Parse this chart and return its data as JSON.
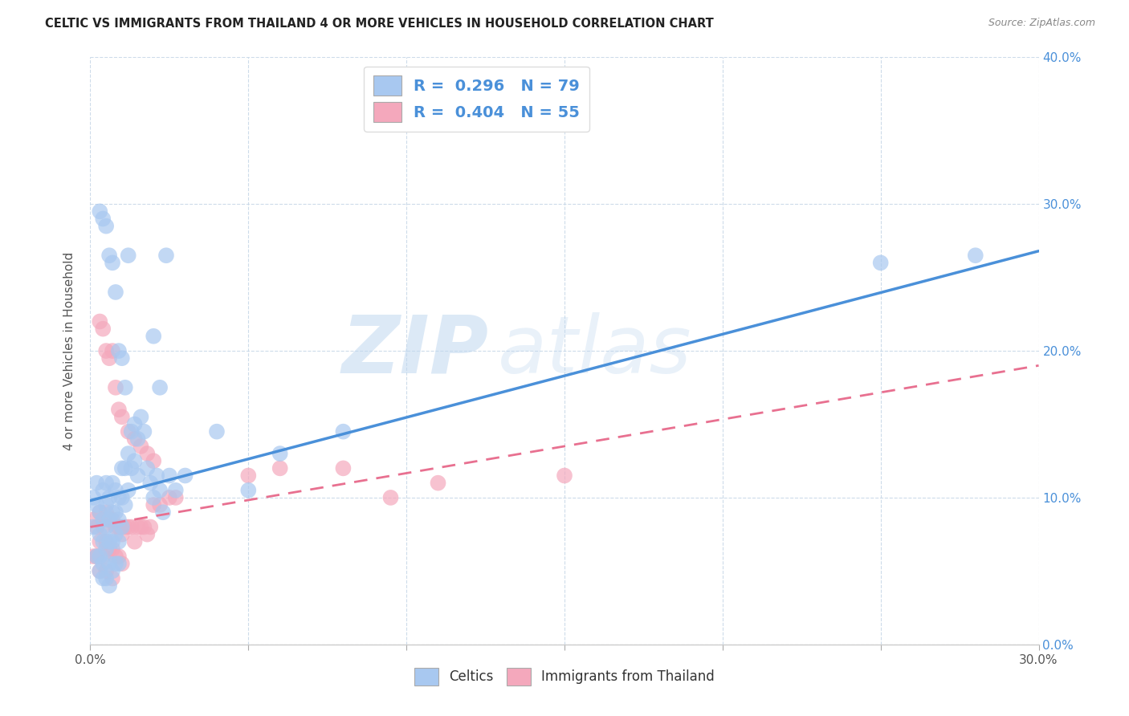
{
  "title": "CELTIC VS IMMIGRANTS FROM THAILAND 4 OR MORE VEHICLES IN HOUSEHOLD CORRELATION CHART",
  "source": "Source: ZipAtlas.com",
  "xmin": 0.0,
  "xmax": 0.3,
  "ymin": 0.0,
  "ymax": 0.4,
  "celtics_R": 0.296,
  "celtics_N": 79,
  "thailand_R": 0.404,
  "thailand_N": 55,
  "celtics_color": "#A8C8F0",
  "thailand_color": "#F4A8BC",
  "celtics_line_color": "#4A90D9",
  "thailand_line_color": "#E87090",
  "legend_label_celtics": "Celtics",
  "legend_label_thailand": "Immigrants from Thailand",
  "ylabel": "4 or more Vehicles in Household",
  "watermark_zip": "ZIP",
  "watermark_atlas": "atlas",
  "celtics_x": [
    0.001,
    0.001,
    0.002,
    0.002,
    0.002,
    0.003,
    0.003,
    0.003,
    0.003,
    0.004,
    0.004,
    0.004,
    0.004,
    0.004,
    0.005,
    0.005,
    0.005,
    0.005,
    0.005,
    0.006,
    0.006,
    0.006,
    0.006,
    0.006,
    0.007,
    0.007,
    0.007,
    0.007,
    0.008,
    0.008,
    0.008,
    0.008,
    0.009,
    0.009,
    0.009,
    0.009,
    0.01,
    0.01,
    0.01,
    0.011,
    0.011,
    0.012,
    0.012,
    0.013,
    0.013,
    0.014,
    0.014,
    0.015,
    0.015,
    0.016,
    0.017,
    0.018,
    0.019,
    0.02,
    0.021,
    0.022,
    0.023,
    0.025,
    0.027,
    0.03,
    0.003,
    0.004,
    0.005,
    0.006,
    0.007,
    0.008,
    0.009,
    0.01,
    0.011,
    0.012,
    0.02,
    0.022,
    0.024,
    0.04,
    0.05,
    0.06,
    0.08,
    0.25,
    0.28
  ],
  "celtics_y": [
    0.1,
    0.08,
    0.095,
    0.11,
    0.06,
    0.09,
    0.075,
    0.06,
    0.05,
    0.105,
    0.085,
    0.07,
    0.055,
    0.045,
    0.11,
    0.095,
    0.08,
    0.065,
    0.045,
    0.1,
    0.085,
    0.07,
    0.055,
    0.04,
    0.11,
    0.09,
    0.07,
    0.05,
    0.105,
    0.09,
    0.075,
    0.055,
    0.1,
    0.085,
    0.07,
    0.055,
    0.12,
    0.1,
    0.08,
    0.12,
    0.095,
    0.13,
    0.105,
    0.145,
    0.12,
    0.15,
    0.125,
    0.14,
    0.115,
    0.155,
    0.145,
    0.12,
    0.11,
    0.1,
    0.115,
    0.105,
    0.09,
    0.115,
    0.105,
    0.115,
    0.295,
    0.29,
    0.285,
    0.265,
    0.26,
    0.24,
    0.2,
    0.195,
    0.175,
    0.265,
    0.21,
    0.175,
    0.265,
    0.145,
    0.105,
    0.13,
    0.145,
    0.26,
    0.265
  ],
  "thailand_x": [
    0.001,
    0.001,
    0.002,
    0.002,
    0.003,
    0.003,
    0.003,
    0.004,
    0.004,
    0.005,
    0.005,
    0.005,
    0.006,
    0.006,
    0.007,
    0.007,
    0.007,
    0.008,
    0.008,
    0.009,
    0.009,
    0.01,
    0.01,
    0.011,
    0.012,
    0.013,
    0.014,
    0.015,
    0.016,
    0.017,
    0.018,
    0.019,
    0.02,
    0.022,
    0.025,
    0.027,
    0.003,
    0.004,
    0.005,
    0.006,
    0.007,
    0.008,
    0.009,
    0.01,
    0.012,
    0.014,
    0.016,
    0.018,
    0.02,
    0.05,
    0.06,
    0.08,
    0.095,
    0.11,
    0.15
  ],
  "thailand_y": [
    0.085,
    0.06,
    0.08,
    0.06,
    0.09,
    0.07,
    0.05,
    0.08,
    0.06,
    0.09,
    0.07,
    0.05,
    0.085,
    0.065,
    0.085,
    0.065,
    0.045,
    0.08,
    0.06,
    0.08,
    0.06,
    0.075,
    0.055,
    0.08,
    0.08,
    0.08,
    0.07,
    0.08,
    0.08,
    0.08,
    0.075,
    0.08,
    0.095,
    0.095,
    0.1,
    0.1,
    0.22,
    0.215,
    0.2,
    0.195,
    0.2,
    0.175,
    0.16,
    0.155,
    0.145,
    0.14,
    0.135,
    0.13,
    0.125,
    0.115,
    0.12,
    0.12,
    0.1,
    0.11,
    0.115
  ],
  "celtics_line_x0": 0.0,
  "celtics_line_y0": 0.098,
  "celtics_line_x1": 0.3,
  "celtics_line_y1": 0.268,
  "thailand_line_x0": 0.0,
  "thailand_line_y0": 0.08,
  "thailand_line_x1": 0.3,
  "thailand_line_y1": 0.19
}
